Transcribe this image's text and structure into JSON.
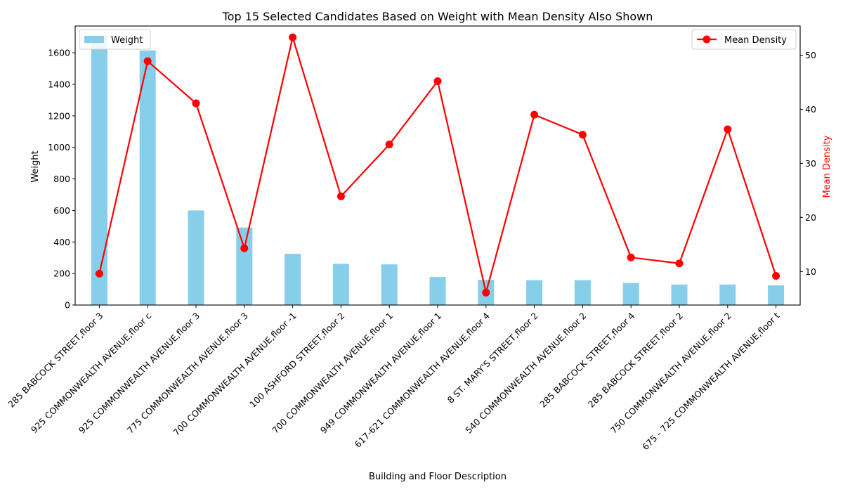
{
  "chart_data": {
    "type": "bar",
    "title": "Top 15 Selected Candidates Based on Weight with Mean Density Also Shown",
    "xlabel": "Building and Floor Description",
    "ylabel": "Weight",
    "y2label": "Mean Density",
    "ylim": [
      0,
      1770
    ],
    "y2lim": [
      3.8,
      55.4
    ],
    "yticks": [
      0,
      200,
      400,
      600,
      800,
      1000,
      1200,
      1400,
      1600
    ],
    "y2ticks": [
      10,
      20,
      30,
      40,
      50
    ],
    "grid": false,
    "categories": [
      "285 BABCOCK STREET,floor 3",
      "925 COMMONWEALTH AVENUE,floor c",
      "925 COMMONWEALTH AVENUE,floor 3",
      "775 COMMONWEALTH AVENUE,floor 3",
      "700 COMMONWEALTH AVENUE,floor -1",
      "100 ASHFORD STREET,floor 2",
      "700 COMMONWEALTH AVENUE,floor 1",
      "949 COMMONWEALTH AVENUE,floor 1",
      "617-621 COMMONWEALTH AVENUE,floor 4",
      "8 ST. MARY'S STREET,floor 2",
      "540 COMMONWEALTH AVENUE,floor 2",
      "285 BABCOCK STREET,floor 4",
      "285 BABCOCK STREET,floor 2",
      "750 COMMONWEALTH AVENUE,floor 2",
      "675 - 725 COMMONWEALTH AVENUE,floor t"
    ],
    "series": [
      {
        "name": "Weight",
        "type": "bar",
        "axis": "left",
        "color": "#87ceeb",
        "values": [
          1710,
          1615,
          600,
          492,
          325,
          262,
          258,
          178,
          160,
          158,
          158,
          140,
          130,
          130,
          125
        ]
      },
      {
        "name": "Mean Density",
        "type": "line",
        "axis": "right",
        "color": "#ff0000",
        "values": [
          9.6,
          48.9,
          41.1,
          14.3,
          53.3,
          23.9,
          33.5,
          45.2,
          6.1,
          39.0,
          35.3,
          12.6,
          11.5,
          36.3,
          9.2
        ]
      }
    ],
    "legend": {
      "bar_position": "upper-left",
      "line_position": "upper-right"
    }
  }
}
